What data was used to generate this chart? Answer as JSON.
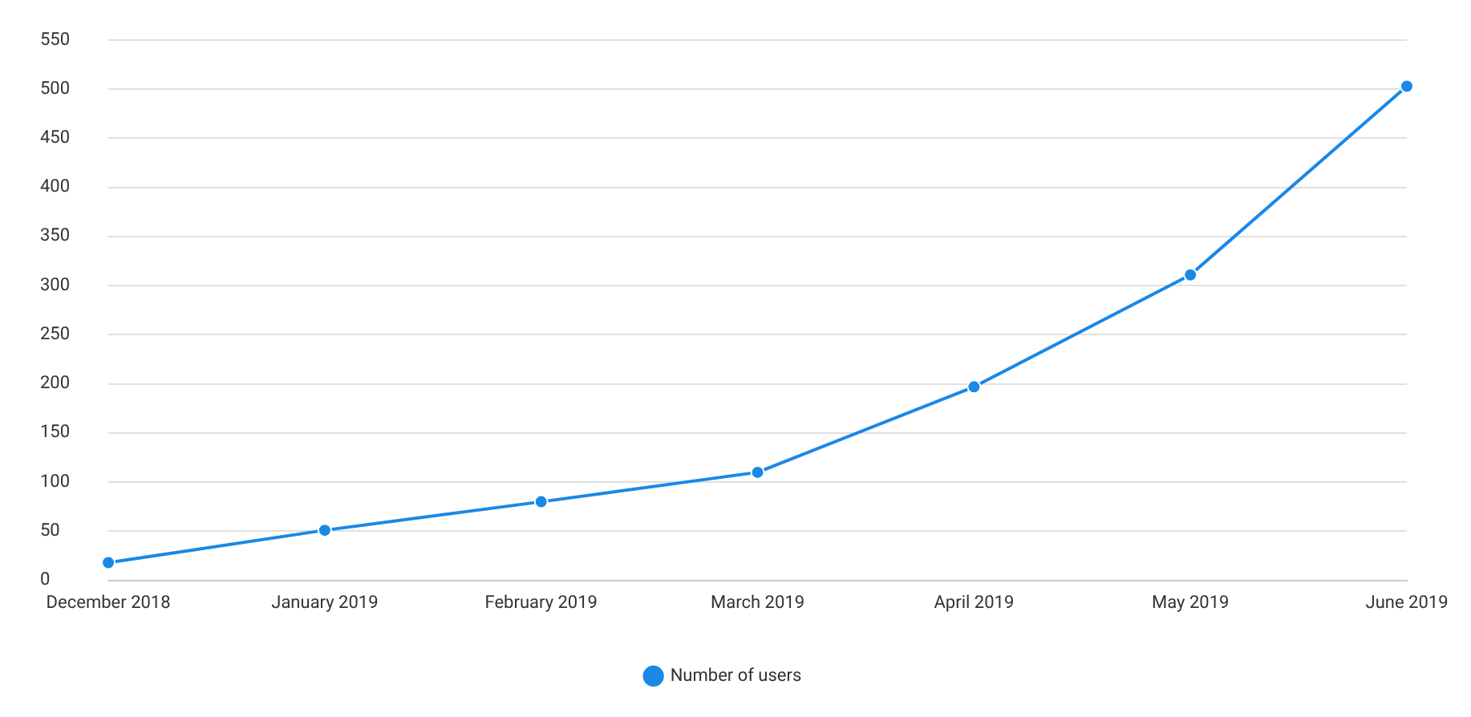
{
  "chart_data": {
    "type": "line",
    "categories": [
      "December 2018",
      "January 2019",
      "February 2019",
      "March 2019",
      "April 2019",
      "May 2019",
      "June 2019"
    ],
    "series": [
      {
        "name": "Number of users",
        "color": "#1a88e6",
        "values": [
          18,
          51,
          80,
          110,
          197,
          311,
          503
        ]
      }
    ],
    "ylim": [
      0,
      550
    ],
    "yticks": [
      0,
      50,
      100,
      150,
      200,
      250,
      300,
      350,
      400,
      450,
      500,
      550
    ],
    "grid": "y",
    "legend": "bottom",
    "marker": "circle",
    "line_style": "solid"
  }
}
